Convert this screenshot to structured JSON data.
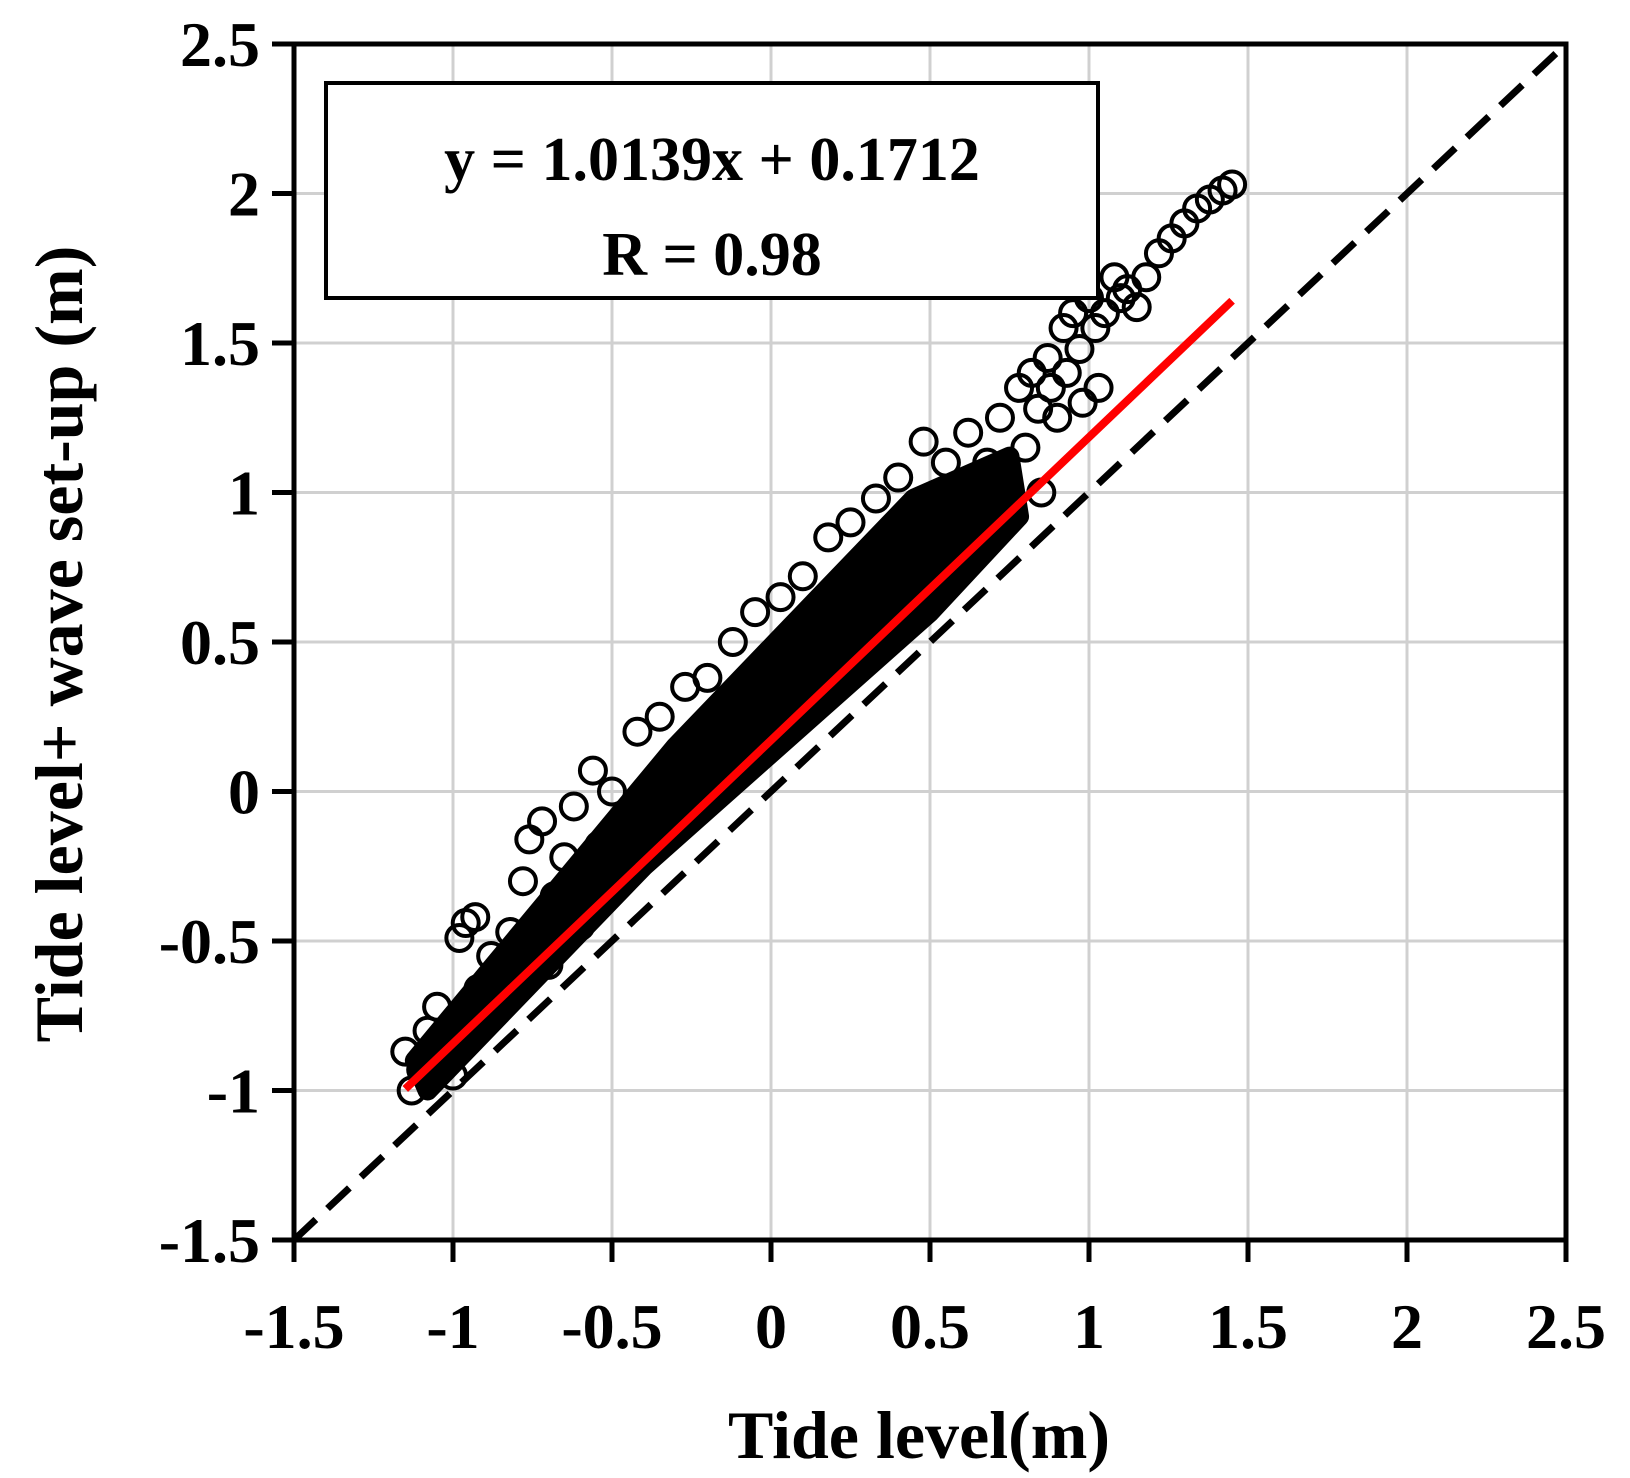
{
  "chart_data": {
    "type": "scatter",
    "xlabel": "Tide level(m)",
    "ylabel": "Tide level+ wave set-up (m)",
    "xlim": [
      -1.5,
      2.5
    ],
    "ylim": [
      -1.5,
      2.5
    ],
    "xticks": [
      -1.5,
      -1,
      -0.5,
      0,
      0.5,
      1,
      1.5,
      2,
      2.5
    ],
    "yticks": [
      -1.5,
      -1,
      -0.5,
      0,
      0.5,
      1,
      1.5,
      2,
      2.5
    ],
    "xtick_labels": [
      "-1.5",
      "-1",
      "-0.5",
      "0",
      "0.5",
      "1",
      "1.5",
      "2",
      "2.5"
    ],
    "ytick_labels": [
      "-1.5",
      "-1",
      "-0.5",
      "0",
      "0.5",
      "1",
      "1.5",
      "2",
      "2.5"
    ],
    "grid": true,
    "annotation": {
      "equation": "y = 1.0139x + 0.1712",
      "r_value": "R = 0.98",
      "placement": "top-left"
    },
    "fit_line": {
      "slope": 1.0139,
      "intercept": 0.1712,
      "x_range": [
        -1.15,
        1.45
      ],
      "color": "#ff0000"
    },
    "reference_line": {
      "type": "1:1",
      "x_range": [
        -1.5,
        2.5
      ],
      "color": "#000000",
      "style": "dashed"
    },
    "marker": {
      "shape": "open-circle",
      "color": "#000000"
    },
    "series": [
      {
        "points": [
          [
            -1.15,
            -0.87
          ],
          [
            -1.13,
            -1.0
          ],
          [
            -1.1,
            -0.93
          ],
          [
            -1.08,
            -0.8
          ],
          [
            -1.05,
            -0.72
          ],
          [
            -1.02,
            -0.86
          ],
          [
            -1.0,
            -0.95
          ],
          [
            -0.98,
            -0.49
          ],
          [
            -0.96,
            -0.44
          ],
          [
            -0.93,
            -0.42
          ],
          [
            -0.92,
            -0.66
          ],
          [
            -0.9,
            -0.76
          ],
          [
            -0.88,
            -0.55
          ],
          [
            -0.85,
            -0.68
          ],
          [
            -0.82,
            -0.47
          ],
          [
            -0.8,
            -0.6
          ],
          [
            -0.78,
            -0.3
          ],
          [
            -0.76,
            -0.16
          ],
          [
            -0.74,
            -0.5
          ],
          [
            -0.72,
            -0.1
          ],
          [
            -0.7,
            -0.58
          ],
          [
            -0.68,
            -0.35
          ],
          [
            -0.65,
            -0.22
          ],
          [
            -0.62,
            -0.05
          ],
          [
            -0.6,
            -0.45
          ],
          [
            -0.58,
            -0.3
          ],
          [
            -0.56,
            0.07
          ],
          [
            -0.54,
            -0.18
          ],
          [
            -0.52,
            -0.35
          ],
          [
            -0.5,
            0.0
          ],
          [
            -0.48,
            -0.25
          ],
          [
            -0.45,
            -0.12
          ],
          [
            -0.42,
            0.2
          ],
          [
            -0.4,
            -0.05
          ],
          [
            -0.38,
            -0.2
          ],
          [
            -0.35,
            0.25
          ],
          [
            -0.32,
            0.08
          ],
          [
            -0.3,
            -0.1
          ],
          [
            -0.27,
            0.35
          ],
          [
            -0.25,
            0.15
          ],
          [
            -0.22,
            -0.02
          ],
          [
            -0.2,
            0.38
          ],
          [
            -0.18,
            0.2
          ],
          [
            -0.15,
            0.05
          ],
          [
            -0.12,
            0.5
          ],
          [
            -0.1,
            0.28
          ],
          [
            -0.08,
            0.12
          ],
          [
            -0.05,
            0.6
          ],
          [
            -0.02,
            0.35
          ],
          [
            0.0,
            0.18
          ],
          [
            0.03,
            0.65
          ],
          [
            0.05,
            0.42
          ],
          [
            0.08,
            0.25
          ],
          [
            0.1,
            0.72
          ],
          [
            0.12,
            0.5
          ],
          [
            0.15,
            0.32
          ],
          [
            0.18,
            0.85
          ],
          [
            0.2,
            0.6
          ],
          [
            0.22,
            0.4
          ],
          [
            0.25,
            0.9
          ],
          [
            0.28,
            0.65
          ],
          [
            0.3,
            0.47
          ],
          [
            0.33,
            0.98
          ],
          [
            0.35,
            0.75
          ],
          [
            0.38,
            0.55
          ],
          [
            0.4,
            1.05
          ],
          [
            0.42,
            0.82
          ],
          [
            0.45,
            0.62
          ],
          [
            0.48,
            1.17
          ],
          [
            0.5,
            0.9
          ],
          [
            0.52,
            0.7
          ],
          [
            0.55,
            1.1
          ],
          [
            0.58,
            0.95
          ],
          [
            0.6,
            0.75
          ],
          [
            0.62,
            1.2
          ],
          [
            0.64,
            1.0
          ],
          [
            0.66,
            0.82
          ],
          [
            0.68,
            1.1
          ],
          [
            0.7,
            0.9
          ],
          [
            0.72,
            1.25
          ],
          [
            0.74,
            1.05
          ],
          [
            0.75,
            0.95
          ],
          [
            0.78,
            1.35
          ],
          [
            0.8,
            1.15
          ],
          [
            0.82,
            1.4
          ],
          [
            0.84,
            1.28
          ],
          [
            0.85,
            1.0
          ],
          [
            0.87,
            1.45
          ],
          [
            0.88,
            1.35
          ],
          [
            0.9,
            1.25
          ],
          [
            0.92,
            1.55
          ],
          [
            0.93,
            1.4
          ],
          [
            0.95,
            1.6
          ],
          [
            0.97,
            1.48
          ],
          [
            0.98,
            1.3
          ],
          [
            1.0,
            1.65
          ],
          [
            1.02,
            1.55
          ],
          [
            1.03,
            1.35
          ],
          [
            1.05,
            1.6
          ],
          [
            1.08,
            1.72
          ],
          [
            1.1,
            1.65
          ],
          [
            1.12,
            1.68
          ],
          [
            1.15,
            1.62
          ],
          [
            1.18,
            1.72
          ],
          [
            1.22,
            1.8
          ],
          [
            1.26,
            1.85
          ],
          [
            1.3,
            1.9
          ],
          [
            1.34,
            1.95
          ],
          [
            1.38,
            1.98
          ],
          [
            1.42,
            2.01
          ],
          [
            1.45,
            2.03
          ]
        ]
      }
    ]
  }
}
